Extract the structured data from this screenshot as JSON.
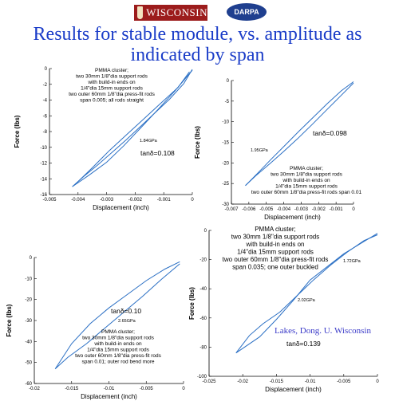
{
  "header": {
    "logo_left": "WISCONSIN",
    "logo_right": "DARPA",
    "title_line1": "Results for stable module, vs. amplitude as",
    "title_line2": "indicated by span"
  },
  "credit": "Lakes, Dong. U. Wisconsin",
  "colors": {
    "title": "#1a3cc8",
    "curve": "#2a6fc4",
    "credit": "#3a3ac8"
  },
  "chart_data": [
    {
      "type": "line",
      "id": "top-left",
      "xlabel": "Displacement (inch)",
      "ylabel": "Force (lbs)",
      "xlim": [
        -0.005,
        0
      ],
      "ylim": [
        -16,
        0
      ],
      "xticks": [
        -0.005,
        -0.004,
        -0.003,
        -0.002,
        -0.001,
        0
      ],
      "xticklabels": [
        "-0.005",
        "-0.004",
        "-0.003",
        "-0.002",
        "-0.001",
        "0"
      ],
      "yticks": [
        -16,
        -14,
        -12,
        -10,
        -8,
        -6,
        -4,
        -2,
        0
      ],
      "yticklabels": [
        "-16",
        "-14",
        "-12",
        "-10",
        "-8",
        "-6",
        "-4",
        "-2",
        "0"
      ],
      "annotation": [
        "PMMA cluster;",
        "two 30mm 1/8\"dia support rods",
        "with build-in ends on",
        "1/4\"dia 15mm support rods",
        "two outer 60mm 1/8\"dia press-fit rods",
        "span 0.005; all rods straight"
      ],
      "modulus_label": "1.84GPa",
      "tan_label": "tanδ=0.108",
      "series": [
        {
          "x": [
            -0.0042,
            -0.0038,
            -0.0033,
            -0.0028,
            -0.0023,
            -0.0018,
            -0.0013,
            -0.0008,
            -0.0003,
            0
          ],
          "y": [
            -15.0,
            -13.7,
            -12.2,
            -10.6,
            -9.0,
            -7.3,
            -5.6,
            -3.9,
            -1.9,
            -0.1
          ]
        },
        {
          "x": [
            0,
            -0.0006,
            -0.0012,
            -0.0018,
            -0.0024,
            -0.003,
            -0.0036,
            -0.0042
          ],
          "y": [
            -0.2,
            -2.8,
            -5.2,
            -7.5,
            -9.8,
            -11.9,
            -13.5,
            -15.0
          ]
        },
        {
          "x": [
            -0.0041,
            -0.0035,
            -0.0029,
            -0.0023,
            -0.0017,
            -0.0011,
            -0.0005,
            -0.0001
          ],
          "y": [
            -14.7,
            -12.6,
            -10.4,
            -8.4,
            -6.4,
            -4.4,
            -2.4,
            -0.4
          ]
        }
      ]
    },
    {
      "type": "line",
      "id": "top-right",
      "xlabel": "Displacement (inch)",
      "ylabel": "Force (lbs)",
      "xlim": [
        -0.007,
        0
      ],
      "ylim": [
        -30,
        0
      ],
      "xticks": [
        -0.007,
        -0.006,
        -0.005,
        -0.004,
        -0.003,
        -0.002,
        -0.001,
        0
      ],
      "xticklabels": [
        "-0.007",
        "-0.006",
        "-0.005",
        "-0.004",
        "-0.003",
        "-0.002",
        "-0.001",
        "0"
      ],
      "yticks": [
        -30,
        -25,
        -20,
        -15,
        -10,
        -5,
        0
      ],
      "yticklabels": [
        "-30",
        "-25",
        "-20",
        "-15",
        "-10",
        "-5",
        "0"
      ],
      "annotation": [
        "PMMA cluster;",
        "two 30mm 1/8\"dia support rods",
        "with build-in ends on",
        "1/4\"dia 15mm support rods",
        "two outer 60mm 1/8\"dia press-fit rods span 0.01"
      ],
      "modulus_label": "1.95GPa",
      "tan_label": "tanδ=0.098",
      "series": [
        {
          "x": [
            -0.0062,
            -0.0055,
            -0.0047,
            -0.0039,
            -0.0031,
            -0.0023,
            -0.0015,
            -0.0007,
            0
          ],
          "y": [
            -25.5,
            -22.5,
            -19.0,
            -15.6,
            -12.2,
            -8.9,
            -5.6,
            -2.5,
            -0.3
          ]
        },
        {
          "x": [
            0,
            -0.0008,
            -0.0016,
            -0.0024,
            -0.0032,
            -0.004,
            -0.0048,
            -0.0056,
            -0.0062
          ],
          "y": [
            -0.6,
            -4.0,
            -7.4,
            -10.8,
            -14.1,
            -17.2,
            -20.2,
            -23.1,
            -25.5
          ]
        }
      ]
    },
    {
      "type": "line",
      "id": "bottom-left",
      "xlabel": "Displacement (inch)",
      "ylabel": "Force (lbs)",
      "xlim": [
        -0.02,
        0
      ],
      "ylim": [
        -60,
        0
      ],
      "xticks": [
        -0.02,
        -0.015,
        -0.01,
        -0.005,
        0
      ],
      "xticklabels": [
        "-0.02",
        "-0.015",
        "-0.01",
        "-0.005",
        "0"
      ],
      "yticks": [
        -60,
        -50,
        -40,
        -30,
        -20,
        -10,
        0
      ],
      "yticklabels": [
        "-60",
        "-50",
        "-40",
        "-30",
        "-20",
        "-10",
        "0"
      ],
      "annotation": [
        "PMMA cluster;",
        "two 30mm 1/8\"dia support rods",
        "with build-in ends on",
        "1/4\"dia 15mm support rods",
        "two outer 60mm 1/8\"dia press-fit rods",
        "span 0.01; outer rod bend more"
      ],
      "modulus_label": "2.65GPa",
      "tan_label": "tanδ=0.10",
      "series": [
        {
          "x": [
            -0.0172,
            -0.015,
            -0.0125,
            -0.01,
            -0.0075,
            -0.005,
            -0.0025,
            -0.0005
          ],
          "y": [
            -53.0,
            -41.0,
            -31.5,
            -24.0,
            -17.5,
            -11.0,
            -5.5,
            -2.0
          ]
        },
        {
          "x": [
            -0.0005,
            -0.003,
            -0.0055,
            -0.008,
            -0.0105,
            -0.013,
            -0.0155,
            -0.0172
          ],
          "y": [
            -3.0,
            -10.5,
            -18.5,
            -26.0,
            -33.5,
            -41.0,
            -47.5,
            -53.0
          ]
        }
      ]
    },
    {
      "type": "line",
      "id": "bottom-right",
      "xlabel": "Displacement (inch)",
      "ylabel": "Force (lbs)",
      "xlim": [
        -0.025,
        0
      ],
      "ylim": [
        -100,
        0
      ],
      "xticks": [
        -0.025,
        -0.02,
        -0.015,
        -0.01,
        -0.005,
        0
      ],
      "xticklabels": [
        "-0.025",
        "-0.02",
        "-0.015",
        "-0.01",
        "-0.005",
        "0"
      ],
      "yticks": [
        -100,
        -80,
        -60,
        -40,
        -20,
        0
      ],
      "yticklabels": [
        "-100",
        "-80",
        "-60",
        "-40",
        "-20",
        "0"
      ],
      "annotation": [
        "PMMA cluster;",
        "two 30mm 1/8\"dia support rods",
        "with build-in ends on",
        "1/4\"dia 15mm support rods",
        "two outer 60mm 1/8\"dia press-fit rods",
        "span 0.035; one outer buckled"
      ],
      "modulus_labels": [
        "1.72GPa",
        "2.02GPa"
      ],
      "tan_label": "tanδ=0.139",
      "series": [
        {
          "x": [
            -0.021,
            -0.019,
            -0.017,
            -0.0145,
            -0.012,
            -0.0095,
            -0.007,
            -0.0045,
            -0.002,
            0
          ],
          "y": [
            -84.0,
            -72.0,
            -64.0,
            -56.0,
            -45.0,
            -34.0,
            -24.0,
            -15.0,
            -7.0,
            -3.0
          ]
        },
        {
          "x": [
            0,
            -0.0025,
            -0.005,
            -0.0075,
            -0.01,
            -0.0125,
            -0.015,
            -0.0175,
            -0.021
          ],
          "y": [
            -2.0,
            -9.0,
            -16.0,
            -25.0,
            -34.0,
            -48.0,
            -61.0,
            -73.0,
            -84.0
          ]
        }
      ]
    }
  ]
}
